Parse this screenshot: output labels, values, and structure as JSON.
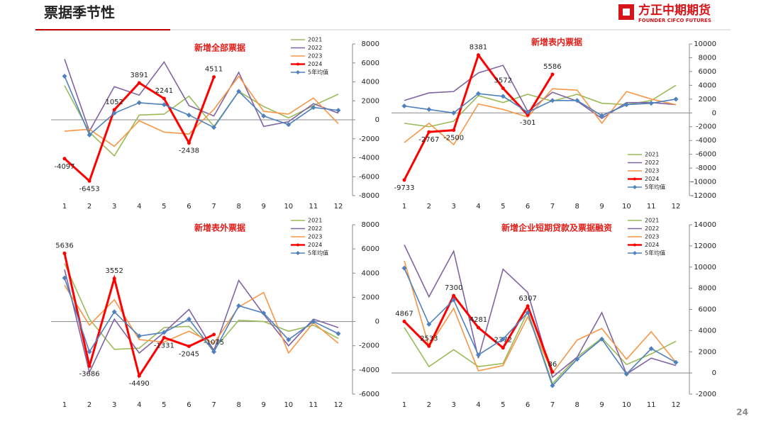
{
  "header": {
    "title": "票据季节性",
    "logo": "方正中期期货",
    "logo_sub": "FOUNDER CIFCO FUTURES"
  },
  "page_number": "24",
  "chart_data": [
    {
      "type": "line",
      "title": "新增全部票据",
      "categories": [
        "1",
        "2",
        "3",
        "4",
        "5",
        "6",
        "7",
        "8",
        "9",
        "10",
        "11",
        "12"
      ],
      "ylim": [
        -8000,
        8000
      ],
      "yticks": [
        -8000,
        -6000,
        -4000,
        -2000,
        0,
        2000,
        4000,
        6000,
        8000
      ],
      "legend": "upper right",
      "series": [
        {
          "name": "2021",
          "color": "#9bbb59",
          "values": [
            3600,
            -1300,
            -3800,
            500,
            600,
            2500,
            -700,
            3000,
            1400,
            200,
            1500,
            2700
          ]
        },
        {
          "name": "2022",
          "color": "#8064a2",
          "values": [
            6400,
            -1200,
            3500,
            2600,
            6100,
            1500,
            400,
            5000,
            -700,
            -200,
            1700,
            700
          ]
        },
        {
          "name": "2023",
          "color": "#f79646",
          "values": [
            -1200,
            -1000,
            -2800,
            -100,
            -1300,
            -1500,
            1100,
            4600,
            900,
            600,
            2300,
            -400
          ]
        },
        {
          "name": "2024",
          "color": "#ff0000",
          "marker": "dot",
          "data_labels": true,
          "values": [
            -4097,
            -6453,
            1052,
            3891,
            2241,
            -2438,
            4511,
            null,
            null,
            null,
            null,
            null
          ]
        },
        {
          "name": "5年均值",
          "color": "#4f81bd",
          "marker": "diamond",
          "values": [
            4600,
            -1600,
            700,
            1800,
            1600,
            500,
            -800,
            3000,
            400,
            -500,
            1300,
            1000
          ]
        }
      ]
    },
    {
      "type": "line",
      "title": "新增表内票据",
      "categories": [
        "1",
        "2",
        "3",
        "4",
        "5",
        "6",
        "7",
        "8",
        "9",
        "10",
        "11",
        "12"
      ],
      "ylim": [
        -12000,
        10000
      ],
      "yticks": [
        -12000,
        -10000,
        -8000,
        -6000,
        -4000,
        -2000,
        0,
        2000,
        4000,
        6000,
        8000,
        10000
      ],
      "legend": "lower right",
      "series": [
        {
          "name": "2021",
          "color": "#9bbb59",
          "values": [
            -1500,
            -2000,
            -1200,
            2500,
            1500,
            2700,
            1700,
            2700,
            1400,
            1200,
            1800,
            4000
          ]
        },
        {
          "name": "2022",
          "color": "#8064a2",
          "values": [
            1800,
            2900,
            3100,
            5800,
            6900,
            200,
            3000,
            1700,
            -800,
            1500,
            1500,
            1200
          ]
        },
        {
          "name": "2023",
          "color": "#f79646",
          "values": [
            -4300,
            -1500,
            -4600,
            1300,
            500,
            -600,
            3500,
            3300,
            -1500,
            3100,
            2000,
            1200
          ]
        },
        {
          "name": "2024",
          "color": "#ff0000",
          "marker": "dot",
          "data_labels": true,
          "values": [
            -9733,
            -2767,
            -2500,
            8381,
            3572,
            -301,
            5586,
            null,
            null,
            null,
            null,
            null
          ]
        },
        {
          "name": "5年均值",
          "color": "#4f81bd",
          "marker": "diamond",
          "values": [
            1000,
            500,
            0,
            2800,
            2400,
            100,
            1800,
            1800,
            -400,
            1200,
            1400,
            2000
          ]
        }
      ]
    },
    {
      "type": "line",
      "title": "新增表外票据",
      "categories": [
        "1",
        "2",
        "3",
        "4",
        "5",
        "6",
        "7",
        "8",
        "9",
        "10",
        "11",
        "12"
      ],
      "ylim": [
        -6000,
        8000
      ],
      "yticks": [
        -6000,
        -4000,
        -2000,
        0,
        2000,
        4000,
        6000,
        8000
      ],
      "legend": "upper right",
      "series": [
        {
          "name": "2021",
          "color": "#9bbb59",
          "values": [
            4800,
            200,
            -2300,
            -2200,
            -500,
            -400,
            -2300,
            100,
            0,
            -800,
            -300,
            -1400
          ]
        },
        {
          "name": "2022",
          "color": "#8064a2",
          "values": [
            4300,
            -4200,
            200,
            -2600,
            -900,
            1000,
            -2400,
            3400,
            600,
            -2000,
            200,
            -500
          ]
        },
        {
          "name": "2023",
          "color": "#f79646",
          "values": [
            3000,
            -300,
            1800,
            -1500,
            -1700,
            -800,
            -1800,
            1200,
            2400,
            -2600,
            -100,
            -1800
          ]
        },
        {
          "name": "2024",
          "color": "#ff0000",
          "marker": "dot",
          "data_labels": true,
          "values": [
            5636,
            -3686,
            3552,
            -4490,
            -1331,
            -2045,
            -1075,
            null,
            null,
            null,
            null,
            null
          ]
        },
        {
          "name": "5年均值",
          "color": "#4f81bd",
          "marker": "diamond",
          "values": [
            3600,
            -2500,
            800,
            -1200,
            -900,
            200,
            -2500,
            1300,
            700,
            -1500,
            0,
            -1000
          ]
        }
      ]
    },
    {
      "type": "line",
      "title": "新增企业短期贷款及票据融资",
      "categories": [
        "1",
        "2",
        "3",
        "4",
        "5",
        "6",
        "7",
        "8",
        "9",
        "10",
        "11",
        "12"
      ],
      "ylim": [
        -2000,
        14000
      ],
      "yticks": [
        -2000,
        0,
        2000,
        4000,
        6000,
        8000,
        10000,
        12000,
        14000
      ],
      "legend": "upper right",
      "series": [
        {
          "name": "2021",
          "color": "#9bbb59",
          "values": [
            4300,
            600,
            2200,
            600,
            900,
            5800,
            -1000,
            1500,
            3300,
            800,
            1800,
            3000
          ]
        },
        {
          "name": "2022",
          "color": "#8064a2",
          "values": [
            12100,
            7200,
            11500,
            1400,
            9800,
            7600,
            -400,
            1500,
            5700,
            -100,
            1400,
            700
          ]
        },
        {
          "name": "2023",
          "color": "#f79646",
          "values": [
            10600,
            2500,
            6100,
            200,
            700,
            5300,
            0,
            3100,
            4200,
            1300,
            3900,
            1000
          ]
        },
        {
          "name": "2024",
          "color": "#ff0000",
          "marker": "dot",
          "data_labels": true,
          "values": [
            4867,
            2533,
            7300,
            4281,
            2372,
            6307,
            86,
            null,
            null,
            null,
            null,
            null
          ]
        },
        {
          "name": "5年均值",
          "color": "#4f81bd",
          "marker": "diamond",
          "values": [
            9900,
            4600,
            6900,
            1700,
            3200,
            5700,
            -1200,
            1300,
            3200,
            -100,
            2300,
            1000
          ]
        }
      ]
    }
  ]
}
